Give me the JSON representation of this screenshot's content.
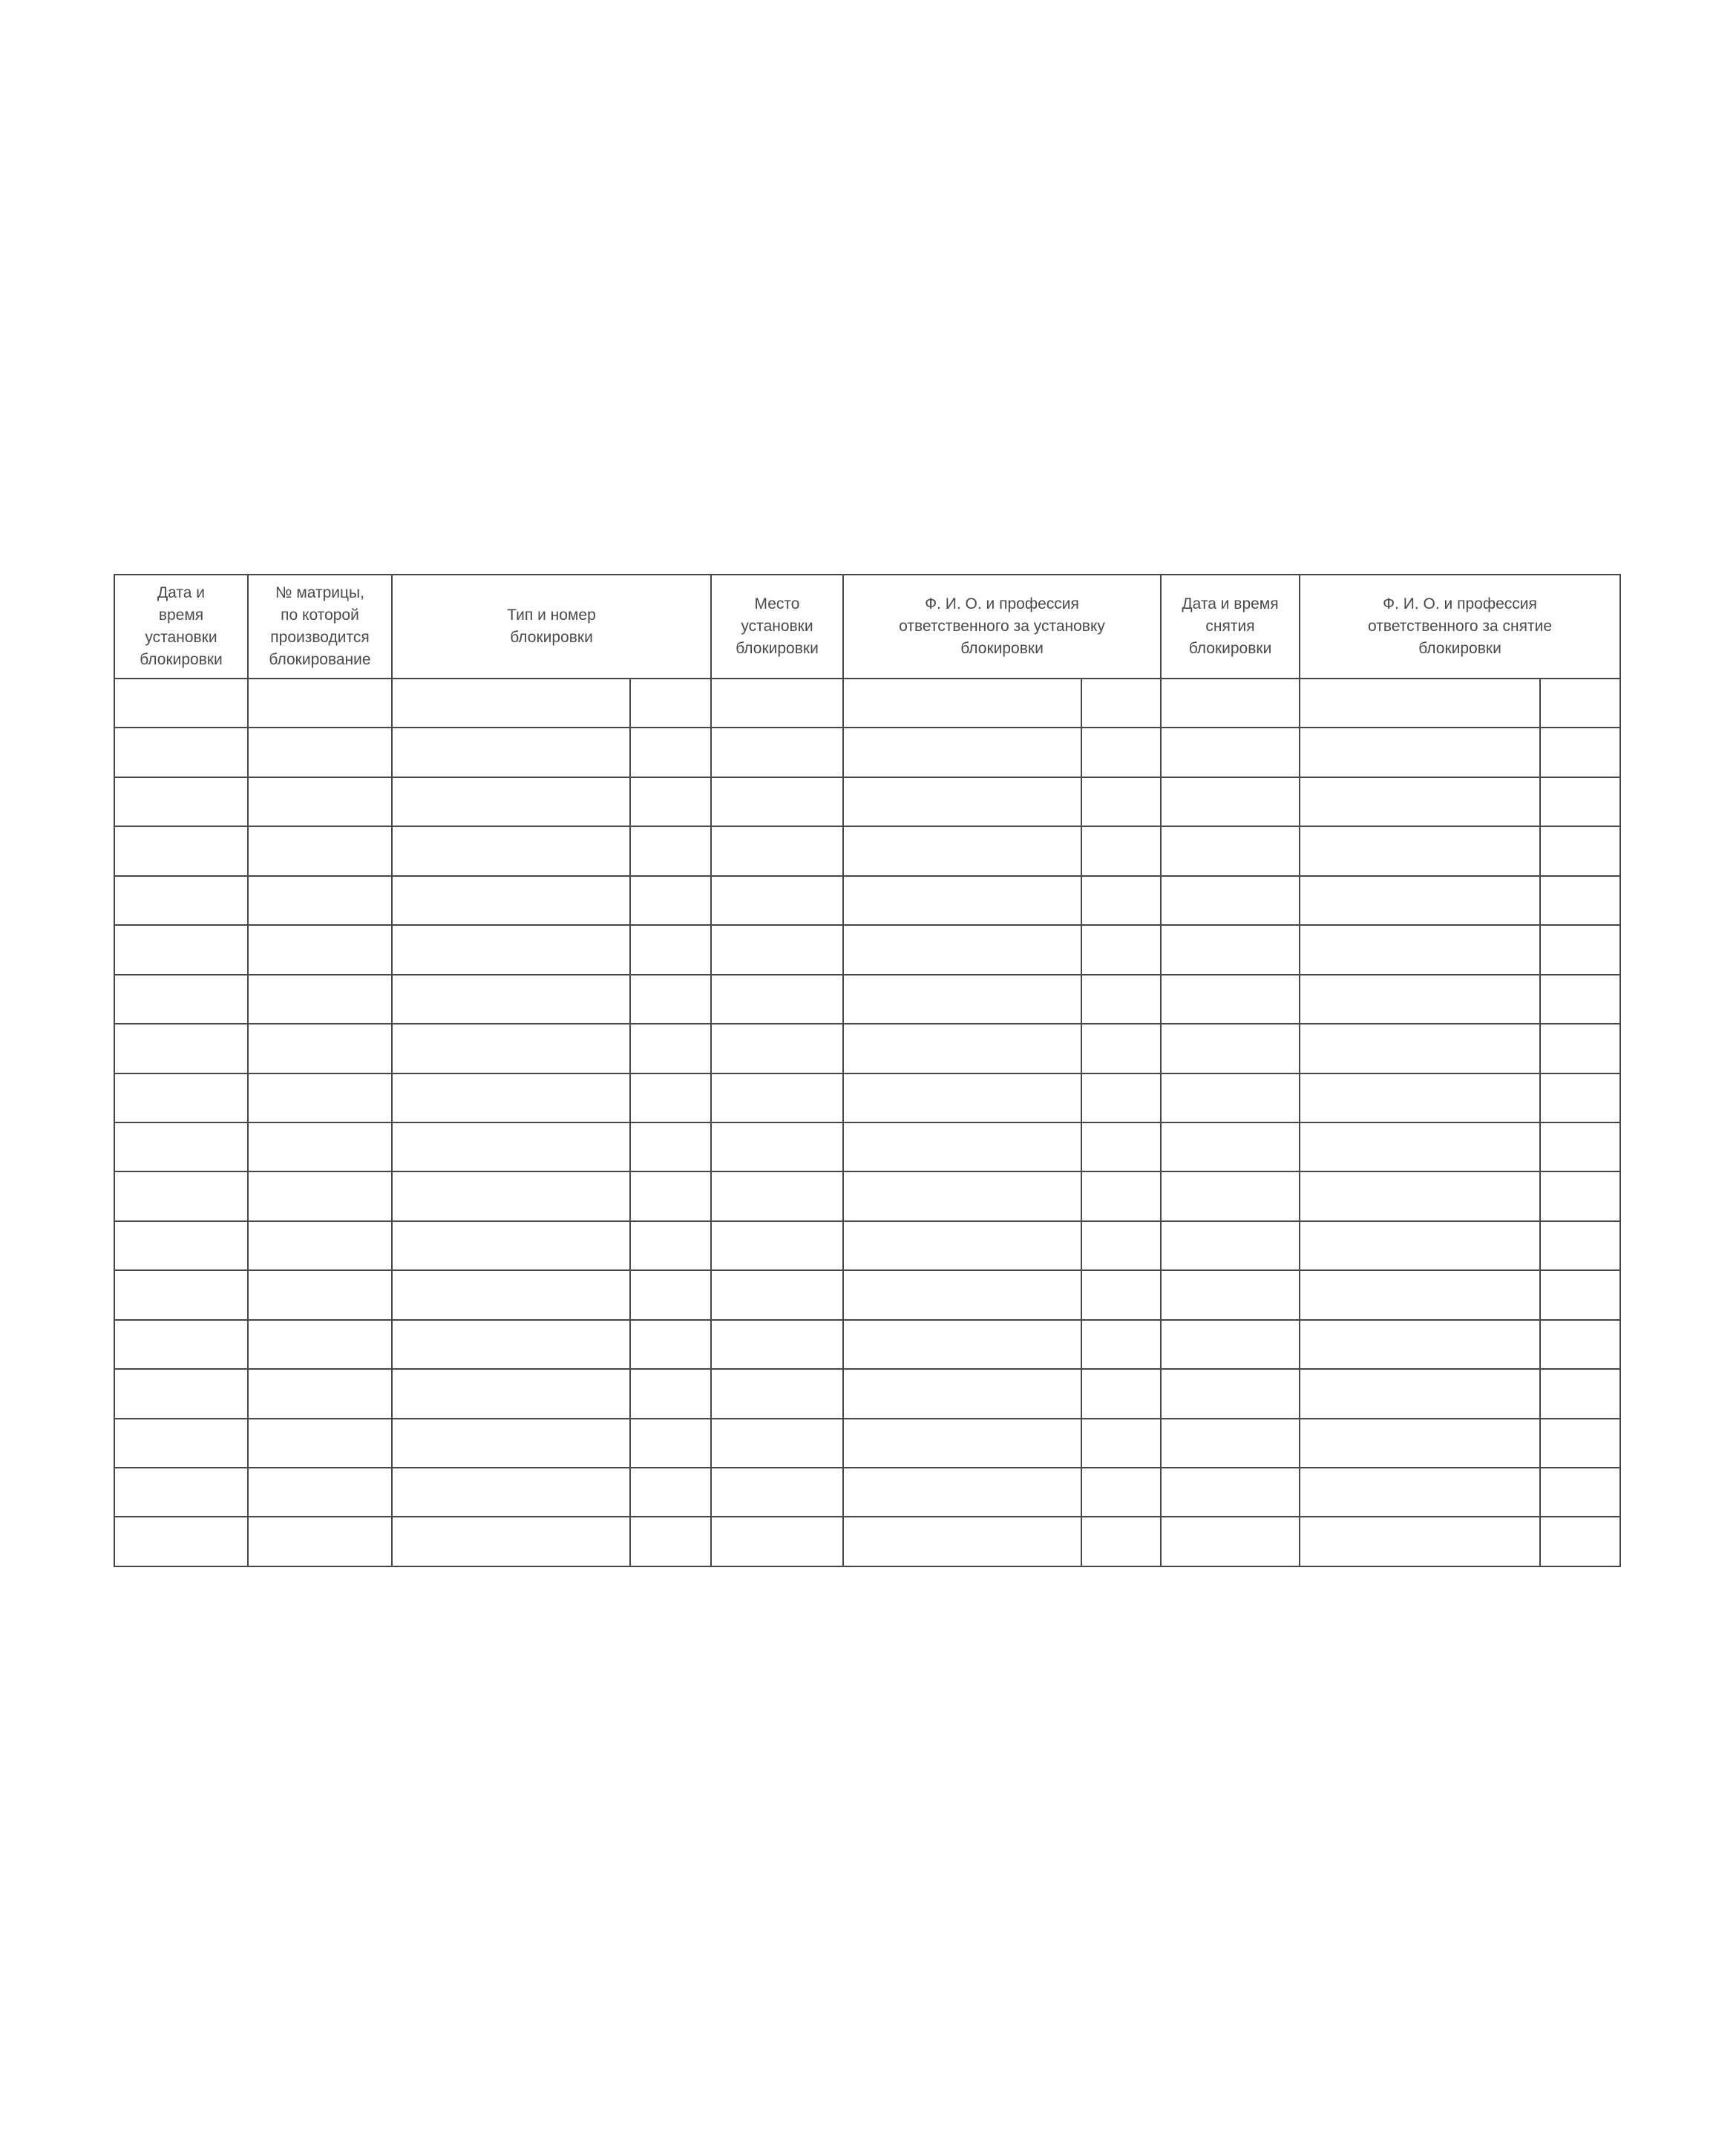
{
  "page": {
    "background_color": "#ffffff",
    "border_color": "#474747",
    "text_color": "#4a4a4a"
  },
  "table": {
    "headers": [
      {
        "label": "Дата и\nвремя\nустановки\nблокировки"
      },
      {
        "label": "№ матрицы,\nпо которой\nпроизводится\nблокирование"
      },
      {
        "label": "Тип и номер\nблокировки"
      },
      {
        "label": "Место\nустановки\nблокировки"
      },
      {
        "label": "Ф. И. О. и профессия\nответственного за установку\nблокировки"
      },
      {
        "label": "Дата и время\nснятия\nблокировки"
      },
      {
        "label": "Ф. И. О. и профессия\nответственного за снятие\nблокировки"
      }
    ],
    "row_count": 18,
    "body_column_count": 10,
    "body_cell_value": ""
  }
}
